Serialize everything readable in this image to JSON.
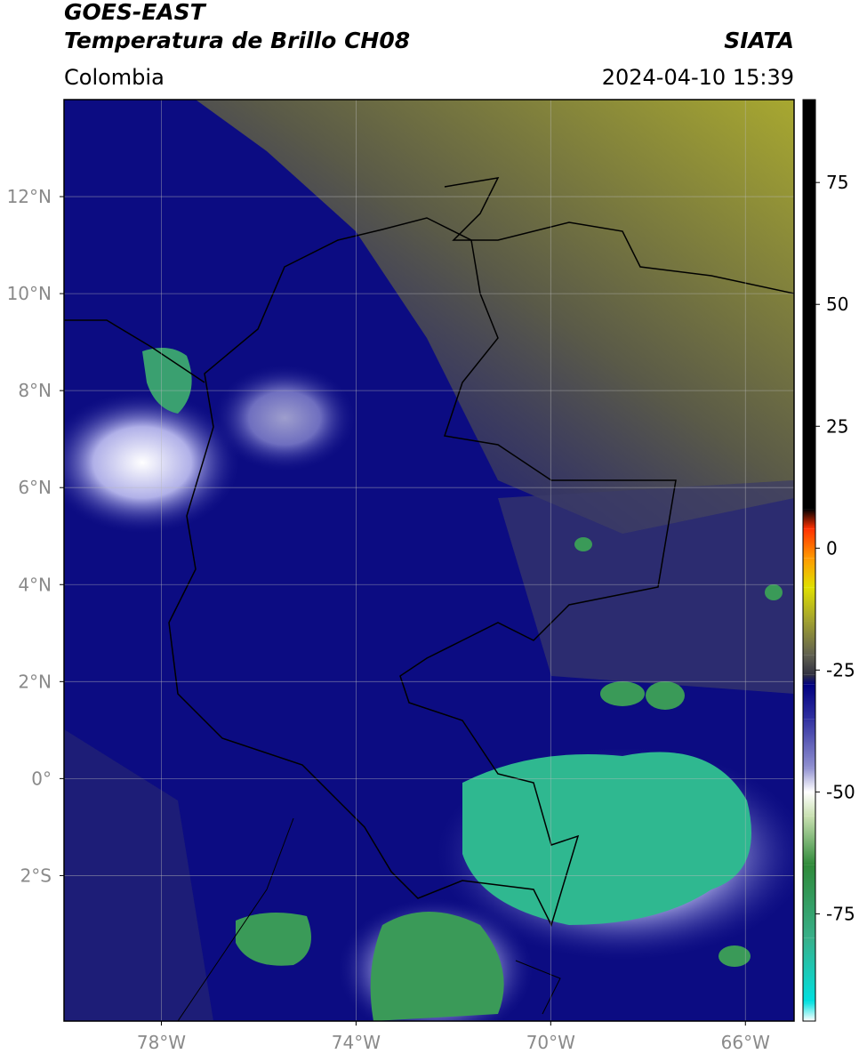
{
  "header": {
    "title": "GOES-EAST",
    "subtitle": "Temperatura de Brillo CH08",
    "source": "SIATA",
    "region": "Colombia",
    "timestamp": "2024-04-10 15:39"
  },
  "map": {
    "xlim": [
      -80,
      -65
    ],
    "ylim": [
      -5,
      14
    ],
    "grid": true,
    "xticks": [
      {
        "value": -78,
        "label": "78°W"
      },
      {
        "value": -74,
        "label": "74°W"
      },
      {
        "value": -70,
        "label": "70°W"
      },
      {
        "value": -66,
        "label": "66°W"
      }
    ],
    "yticks": [
      {
        "value": 12,
        "label": "12°N"
      },
      {
        "value": 10,
        "label": "10°N"
      },
      {
        "value": 8,
        "label": "8°N"
      },
      {
        "value": 6,
        "label": "6°N"
      },
      {
        "value": 4,
        "label": "4°N"
      },
      {
        "value": 2,
        "label": "2°N"
      },
      {
        "value": 0,
        "label": "0°"
      },
      {
        "value": -2,
        "label": "2°S"
      }
    ]
  },
  "colorbar": {
    "lim": [
      -97,
      92
    ],
    "ticks": [
      -75,
      -50,
      -25,
      0,
      25,
      50,
      75
    ],
    "stops": [
      {
        "value": -97,
        "color": "#ffffff"
      },
      {
        "value": -93,
        "color": "#00e0e0"
      },
      {
        "value": -80,
        "color": "#38b08a"
      },
      {
        "value": -65,
        "color": "#2f8a3a"
      },
      {
        "value": -55,
        "color": "#c8e0b0"
      },
      {
        "value": -50,
        "color": "#ffffff"
      },
      {
        "value": -45,
        "color": "#9090d0"
      },
      {
        "value": -35,
        "color": "#3030a0"
      },
      {
        "value": -28,
        "color": "#000080"
      },
      {
        "value": -26,
        "color": "#303040"
      },
      {
        "value": -22,
        "color": "#606050"
      },
      {
        "value": -15,
        "color": "#a0a030"
      },
      {
        "value": -8,
        "color": "#e0e000"
      },
      {
        "value": -2,
        "color": "#ff9900"
      },
      {
        "value": 4,
        "color": "#ff3000"
      },
      {
        "value": 8,
        "color": "#000000"
      }
    ]
  }
}
